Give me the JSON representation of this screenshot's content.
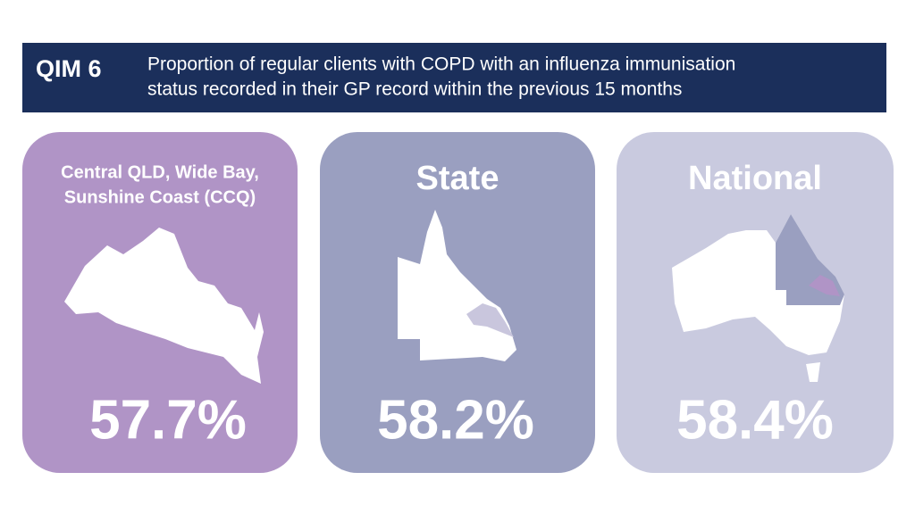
{
  "header": {
    "label": "QIM 6",
    "title_lines": [
      "Proportion of regular clients with COPD with an influenza immunisation",
      "status recorded in their GP record within the previous 15 months"
    ]
  },
  "cards": [
    {
      "title_lines": [
        "Central QLD, Wide Bay,",
        "Sunshine Coast (CCQ)"
      ],
      "value": "57.7%"
    },
    {
      "title_lines": [
        "State"
      ],
      "value": "58.2%"
    },
    {
      "title_lines": [
        "National"
      ],
      "value": "58.4%"
    }
  ]
}
